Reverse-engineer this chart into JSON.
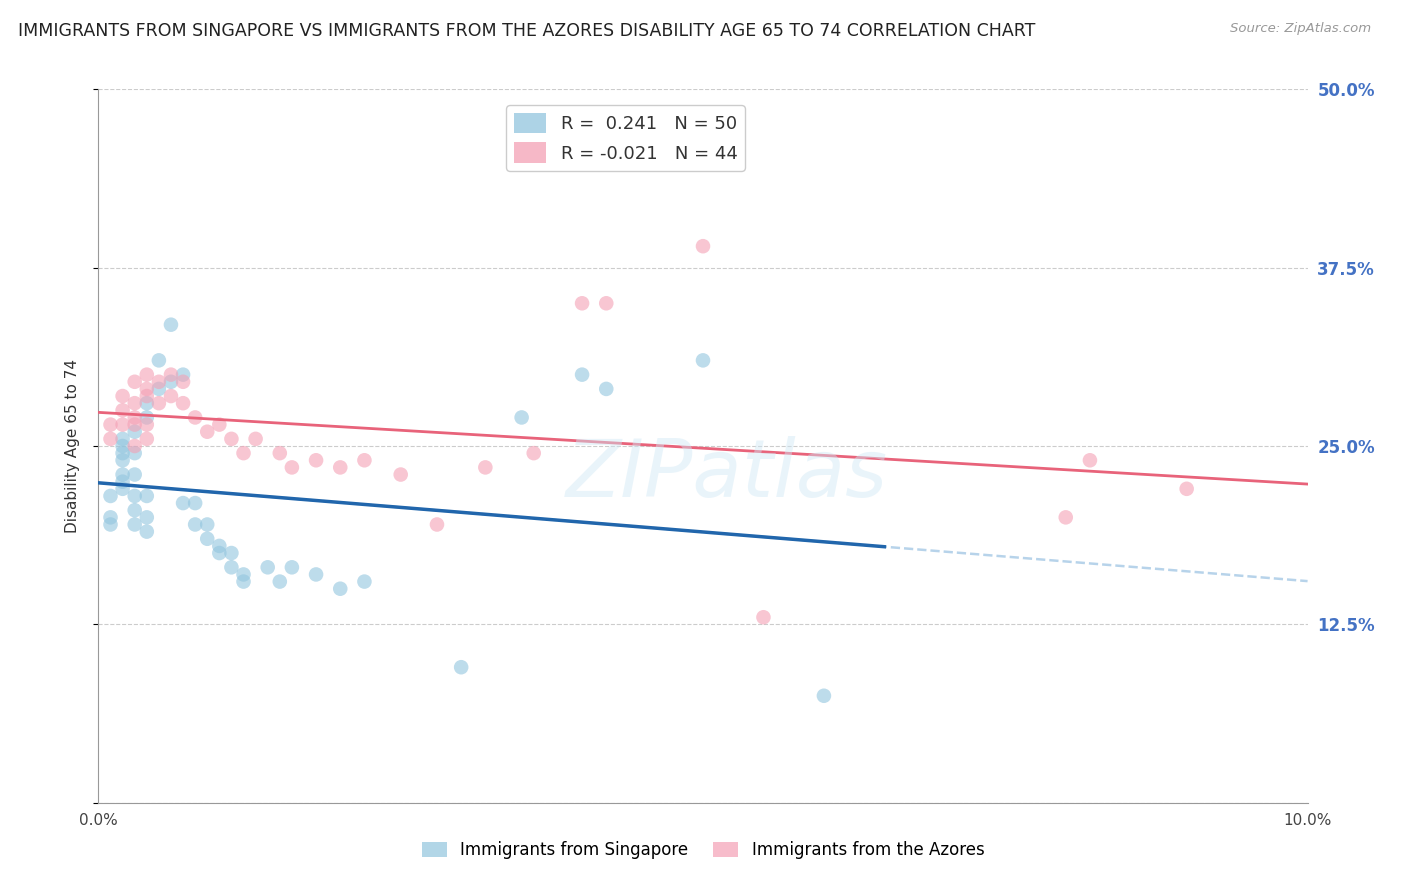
{
  "title": "IMMIGRANTS FROM SINGAPORE VS IMMIGRANTS FROM THE AZORES DISABILITY AGE 65 TO 74 CORRELATION CHART",
  "source": "Source: ZipAtlas.com",
  "ylabel": "Disability Age 65 to 74",
  "xlim": [
    0.0,
    0.1
  ],
  "ylim": [
    0.0,
    0.5
  ],
  "xticks": [
    0.0,
    0.02,
    0.04,
    0.06,
    0.08,
    0.1
  ],
  "xticklabels": [
    "0.0%",
    "",
    "",
    "",
    "",
    "10.0%"
  ],
  "yticks": [
    0.0,
    0.125,
    0.25,
    0.375,
    0.5
  ],
  "yticklabels": [
    "",
    "12.5%",
    "25.0%",
    "37.5%",
    "50.0%"
  ],
  "singapore_color": "#92c5de",
  "azores_color": "#f4a0b5",
  "singapore_line_color": "#2166ac",
  "azores_line_color": "#e8637a",
  "dashed_line_color": "#b0cfe8",
  "background_color": "#ffffff",
  "grid_color": "#cccccc",
  "title_fontsize": 12.5,
  "axis_label_fontsize": 11,
  "tick_fontsize": 11,
  "right_tick_color": "#4472c4",
  "singapore_points": [
    [
      0.001,
      0.2
    ],
    [
      0.001,
      0.215
    ],
    [
      0.001,
      0.195
    ],
    [
      0.002,
      0.25
    ],
    [
      0.002,
      0.24
    ],
    [
      0.002,
      0.245
    ],
    [
      0.002,
      0.255
    ],
    [
      0.002,
      0.23
    ],
    [
      0.002,
      0.22
    ],
    [
      0.002,
      0.225
    ],
    [
      0.003,
      0.26
    ],
    [
      0.003,
      0.245
    ],
    [
      0.003,
      0.23
    ],
    [
      0.003,
      0.215
    ],
    [
      0.003,
      0.205
    ],
    [
      0.003,
      0.195
    ],
    [
      0.004,
      0.28
    ],
    [
      0.004,
      0.27
    ],
    [
      0.004,
      0.215
    ],
    [
      0.004,
      0.2
    ],
    [
      0.004,
      0.19
    ],
    [
      0.005,
      0.31
    ],
    [
      0.005,
      0.29
    ],
    [
      0.006,
      0.335
    ],
    [
      0.006,
      0.295
    ],
    [
      0.007,
      0.3
    ],
    [
      0.007,
      0.21
    ],
    [
      0.008,
      0.21
    ],
    [
      0.008,
      0.195
    ],
    [
      0.009,
      0.195
    ],
    [
      0.009,
      0.185
    ],
    [
      0.01,
      0.18
    ],
    [
      0.01,
      0.175
    ],
    [
      0.011,
      0.175
    ],
    [
      0.011,
      0.165
    ],
    [
      0.012,
      0.16
    ],
    [
      0.012,
      0.155
    ],
    [
      0.014,
      0.165
    ],
    [
      0.015,
      0.155
    ],
    [
      0.016,
      0.165
    ],
    [
      0.018,
      0.16
    ],
    [
      0.02,
      0.15
    ],
    [
      0.022,
      0.155
    ],
    [
      0.03,
      0.095
    ],
    [
      0.035,
      0.27
    ],
    [
      0.04,
      0.3
    ],
    [
      0.042,
      0.29
    ],
    [
      0.05,
      0.31
    ],
    [
      0.06,
      0.075
    ]
  ],
  "azores_points": [
    [
      0.001,
      0.265
    ],
    [
      0.001,
      0.255
    ],
    [
      0.002,
      0.285
    ],
    [
      0.002,
      0.275
    ],
    [
      0.002,
      0.265
    ],
    [
      0.003,
      0.295
    ],
    [
      0.003,
      0.28
    ],
    [
      0.003,
      0.27
    ],
    [
      0.003,
      0.265
    ],
    [
      0.003,
      0.25
    ],
    [
      0.004,
      0.3
    ],
    [
      0.004,
      0.29
    ],
    [
      0.004,
      0.285
    ],
    [
      0.004,
      0.265
    ],
    [
      0.004,
      0.255
    ],
    [
      0.005,
      0.295
    ],
    [
      0.005,
      0.28
    ],
    [
      0.006,
      0.3
    ],
    [
      0.006,
      0.285
    ],
    [
      0.007,
      0.295
    ],
    [
      0.007,
      0.28
    ],
    [
      0.008,
      0.27
    ],
    [
      0.009,
      0.26
    ],
    [
      0.01,
      0.265
    ],
    [
      0.011,
      0.255
    ],
    [
      0.012,
      0.245
    ],
    [
      0.013,
      0.255
    ],
    [
      0.015,
      0.245
    ],
    [
      0.016,
      0.235
    ],
    [
      0.018,
      0.24
    ],
    [
      0.02,
      0.235
    ],
    [
      0.022,
      0.24
    ],
    [
      0.025,
      0.23
    ],
    [
      0.028,
      0.195
    ],
    [
      0.032,
      0.235
    ],
    [
      0.036,
      0.245
    ],
    [
      0.04,
      0.35
    ],
    [
      0.042,
      0.35
    ],
    [
      0.05,
      0.39
    ],
    [
      0.055,
      0.13
    ],
    [
      0.08,
      0.2
    ],
    [
      0.082,
      0.24
    ],
    [
      0.09,
      0.22
    ]
  ]
}
